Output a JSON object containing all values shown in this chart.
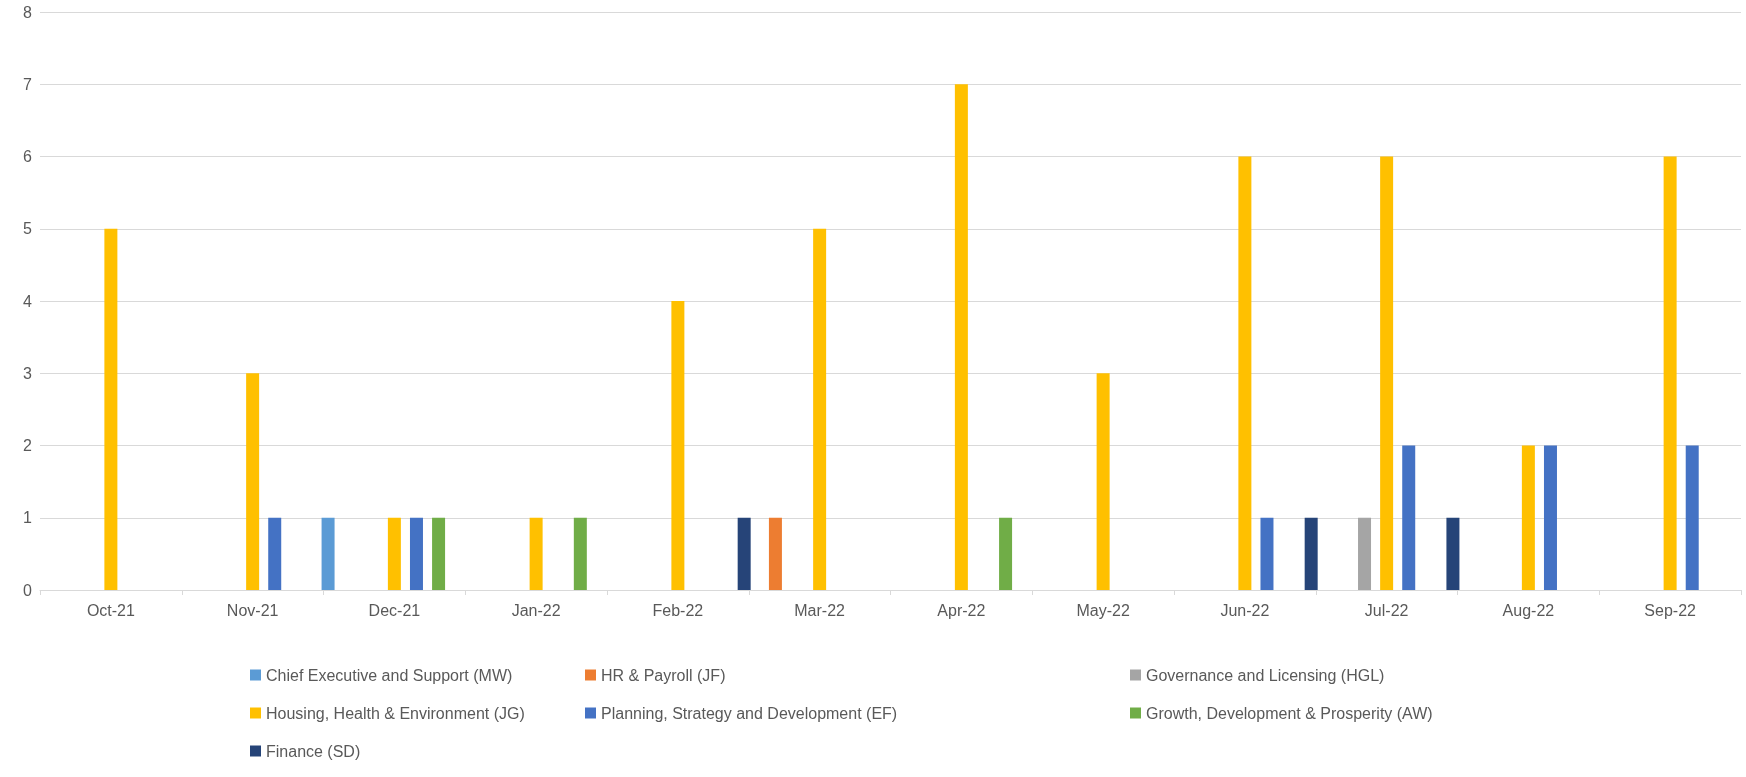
{
  "chart_data": {
    "type": "bar",
    "categories": [
      "Oct-21",
      "Nov-21",
      "Dec-21",
      "Jan-22",
      "Feb-22",
      "Mar-22",
      "Apr-22",
      "May-22",
      "Jun-22",
      "Jul-22",
      "Aug-22",
      "Sep-22"
    ],
    "series": [
      {
        "name": "Chief Executive and Support (MW)",
        "color": "#5b9bd5",
        "values": [
          0,
          0,
          1,
          0,
          0,
          0,
          0,
          0,
          0,
          0,
          0,
          0
        ]
      },
      {
        "name": "HR & Payroll (JF)",
        "color": "#ed7d31",
        "values": [
          0,
          0,
          0,
          0,
          0,
          1,
          0,
          0,
          0,
          0,
          0,
          0
        ]
      },
      {
        "name": "Governance and Licensing (HGL)",
        "color": "#a5a5a5",
        "values": [
          0,
          0,
          0,
          0,
          0,
          0,
          0,
          0,
          0,
          1,
          0,
          0
        ]
      },
      {
        "name": "Housing, Health & Environment (JG)",
        "color": "#ffc000",
        "values": [
          5,
          3,
          1,
          1,
          4,
          5,
          7,
          3,
          6,
          6,
          2,
          6
        ]
      },
      {
        "name": "Planning, Strategy and Development (EF)",
        "color": "#4472c4",
        "values": [
          0,
          1,
          1,
          0,
          0,
          0,
          0,
          0,
          1,
          2,
          2,
          2
        ]
      },
      {
        "name": "Growth, Development & Prosperity (AW)",
        "color": "#70ad47",
        "values": [
          0,
          0,
          1,
          1,
          0,
          0,
          1,
          0,
          0,
          0,
          0,
          0
        ]
      },
      {
        "name": "Finance (SD)",
        "color": "#264478",
        "values": [
          0,
          0,
          0,
          0,
          1,
          0,
          0,
          0,
          1,
          1,
          0,
          0
        ]
      }
    ],
    "ylim": [
      0,
      8
    ],
    "yticks": [
      0,
      1,
      2,
      3,
      4,
      5,
      6,
      7,
      8
    ],
    "grid": "y",
    "legend": "bottom"
  }
}
